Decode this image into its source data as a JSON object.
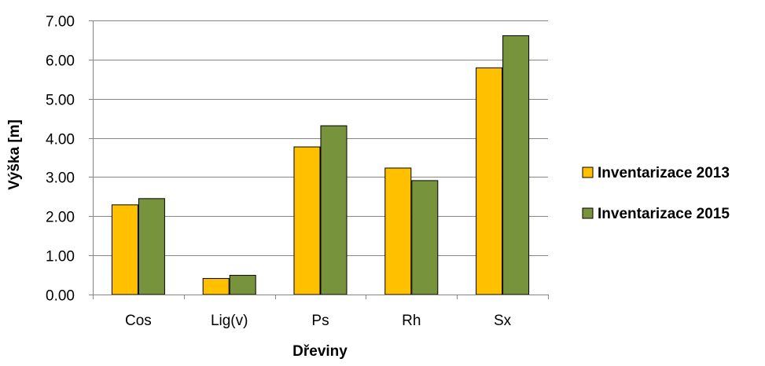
{
  "chart_data": {
    "type": "bar",
    "title": "",
    "xlabel": "Dřeviny",
    "ylabel": "Výška [m]",
    "categories": [
      "Cos",
      "Lig(v)",
      "Ps",
      "Rh",
      "Sx"
    ],
    "series": [
      {
        "name": "Inventarizace 2013",
        "color": "#FFC000",
        "values": [
          2.3,
          0.42,
          3.78,
          3.24,
          5.8
        ]
      },
      {
        "name": "Inventarizace 2015",
        "color": "#77933C",
        "values": [
          2.46,
          0.5,
          4.32,
          2.92,
          6.62
        ]
      }
    ],
    "ylim": [
      0,
      7
    ],
    "ystep": 1,
    "ytick_labels": [
      "0.00",
      "1.00",
      "2.00",
      "3.00",
      "4.00",
      "5.00",
      "6.00",
      "7.00"
    ],
    "grid": true,
    "legend_position": "right"
  }
}
